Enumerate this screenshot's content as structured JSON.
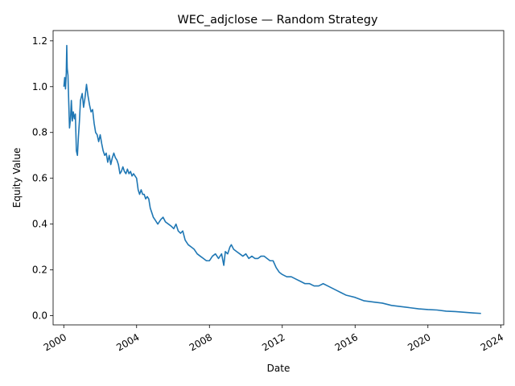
{
  "chart_data": {
    "type": "line",
    "title": "WEC_adjclose — Random Strategy",
    "xlabel": "Date",
    "ylabel": "Equity Value",
    "xlim": [
      "1999-06-01",
      "2024-03-01"
    ],
    "ylim": [
      -0.04,
      1.245
    ],
    "x_ticks": [
      "2000",
      "2004",
      "2008",
      "2012",
      "2016",
      "2020",
      "2024"
    ],
    "y_ticks": [
      "0.0",
      "0.2",
      "0.4",
      "0.6",
      "0.8",
      "1.0",
      "1.2"
    ],
    "grid": false,
    "legend": "none",
    "series": [
      {
        "color": "#1f77b4",
        "points": [
          [
            "2000-01-03",
            1.0
          ],
          [
            "2000-01-20",
            1.04
          ],
          [
            "2000-02-05",
            0.99
          ],
          [
            "2000-02-20",
            1.06
          ],
          [
            "2000-03-01",
            1.18
          ],
          [
            "2000-03-10",
            1.08
          ],
          [
            "2000-03-25",
            1.05
          ],
          [
            "2000-04-10",
            0.93
          ],
          [
            "2000-04-25",
            0.82
          ],
          [
            "2000-05-15",
            0.86
          ],
          [
            "2000-06-01",
            0.94
          ],
          [
            "2000-06-20",
            0.85
          ],
          [
            "2000-07-10",
            0.89
          ],
          [
            "2000-08-01",
            0.86
          ],
          [
            "2000-08-20",
            0.88
          ],
          [
            "2000-09-10",
            0.72
          ],
          [
            "2000-10-01",
            0.7
          ],
          [
            "2000-10-20",
            0.78
          ],
          [
            "2000-11-10",
            0.85
          ],
          [
            "2000-12-01",
            0.94
          ],
          [
            "2001-01-05",
            0.97
          ],
          [
            "2001-02-01",
            0.91
          ],
          [
            "2001-03-01",
            0.95
          ],
          [
            "2001-04-01",
            1.01
          ],
          [
            "2001-05-01",
            0.96
          ],
          [
            "2001-06-01",
            0.92
          ],
          [
            "2001-07-01",
            0.89
          ],
          [
            "2001-08-01",
            0.9
          ],
          [
            "2001-09-01",
            0.84
          ],
          [
            "2001-10-01",
            0.8
          ],
          [
            "2001-11-01",
            0.79
          ],
          [
            "2001-12-01",
            0.76
          ],
          [
            "2002-01-01",
            0.79
          ],
          [
            "2002-02-01",
            0.75
          ],
          [
            "2002-03-01",
            0.72
          ],
          [
            "2002-04-01",
            0.7
          ],
          [
            "2002-05-01",
            0.71
          ],
          [
            "2002-06-01",
            0.67
          ],
          [
            "2002-07-01",
            0.7
          ],
          [
            "2002-08-01",
            0.66
          ],
          [
            "2002-09-01",
            0.69
          ],
          [
            "2002-10-01",
            0.71
          ],
          [
            "2002-11-01",
            0.69
          ],
          [
            "2002-12-01",
            0.68
          ],
          [
            "2003-01-01",
            0.66
          ],
          [
            "2003-02-01",
            0.62
          ],
          [
            "2003-03-01",
            0.63
          ],
          [
            "2003-04-01",
            0.65
          ],
          [
            "2003-05-01",
            0.63
          ],
          [
            "2003-06-01",
            0.62
          ],
          [
            "2003-07-01",
            0.64
          ],
          [
            "2003-08-01",
            0.62
          ],
          [
            "2003-09-01",
            0.63
          ],
          [
            "2003-10-01",
            0.61
          ],
          [
            "2003-11-01",
            0.62
          ],
          [
            "2003-12-01",
            0.61
          ],
          [
            "2004-01-01",
            0.6
          ],
          [
            "2004-02-01",
            0.55
          ],
          [
            "2004-03-01",
            0.53
          ],
          [
            "2004-04-01",
            0.55
          ],
          [
            "2004-05-01",
            0.53
          ],
          [
            "2004-06-01",
            0.53
          ],
          [
            "2004-07-01",
            0.51
          ],
          [
            "2004-08-01",
            0.52
          ],
          [
            "2004-09-01",
            0.51
          ],
          [
            "2004-10-01",
            0.47
          ],
          [
            "2004-11-01",
            0.45
          ],
          [
            "2004-12-01",
            0.43
          ],
          [
            "2005-01-01",
            0.42
          ],
          [
            "2005-03-01",
            0.4
          ],
          [
            "2005-05-01",
            0.42
          ],
          [
            "2005-06-15",
            0.43
          ],
          [
            "2005-08-01",
            0.41
          ],
          [
            "2005-10-01",
            0.4
          ],
          [
            "2005-12-01",
            0.39
          ],
          [
            "2006-01-15",
            0.38
          ],
          [
            "2006-03-01",
            0.4
          ],
          [
            "2006-04-15",
            0.37
          ],
          [
            "2006-06-01",
            0.36
          ],
          [
            "2006-07-15",
            0.37
          ],
          [
            "2006-09-01",
            0.33
          ],
          [
            "2006-11-01",
            0.31
          ],
          [
            "2007-01-01",
            0.3
          ],
          [
            "2007-03-01",
            0.29
          ],
          [
            "2007-05-01",
            0.27
          ],
          [
            "2007-07-01",
            0.26
          ],
          [
            "2007-09-01",
            0.25
          ],
          [
            "2007-11-01",
            0.24
          ],
          [
            "2008-01-01",
            0.24
          ],
          [
            "2008-03-01",
            0.26
          ],
          [
            "2008-05-01",
            0.27
          ],
          [
            "2008-07-01",
            0.25
          ],
          [
            "2008-09-01",
            0.27
          ],
          [
            "2008-10-15",
            0.22
          ],
          [
            "2008-11-15",
            0.28
          ],
          [
            "2009-01-01",
            0.27
          ],
          [
            "2009-02-15",
            0.3
          ],
          [
            "2009-03-15",
            0.31
          ],
          [
            "2009-05-01",
            0.29
          ],
          [
            "2009-07-01",
            0.28
          ],
          [
            "2009-09-01",
            0.27
          ],
          [
            "2009-11-01",
            0.26
          ],
          [
            "2010-01-01",
            0.27
          ],
          [
            "2010-03-01",
            0.25
          ],
          [
            "2010-05-01",
            0.26
          ],
          [
            "2010-07-01",
            0.25
          ],
          [
            "2010-09-01",
            0.25
          ],
          [
            "2010-11-01",
            0.26
          ],
          [
            "2011-01-01",
            0.26
          ],
          [
            "2011-03-01",
            0.25
          ],
          [
            "2011-05-01",
            0.24
          ],
          [
            "2011-07-01",
            0.24
          ],
          [
            "2011-09-01",
            0.21
          ],
          [
            "2011-11-01",
            0.19
          ],
          [
            "2012-01-01",
            0.18
          ],
          [
            "2012-04-01",
            0.17
          ],
          [
            "2012-07-01",
            0.17
          ],
          [
            "2012-10-01",
            0.16
          ],
          [
            "2013-01-01",
            0.15
          ],
          [
            "2013-04-01",
            0.14
          ],
          [
            "2013-07-01",
            0.14
          ],
          [
            "2013-10-01",
            0.13
          ],
          [
            "2014-01-01",
            0.13
          ],
          [
            "2014-04-01",
            0.14
          ],
          [
            "2014-07-01",
            0.13
          ],
          [
            "2014-10-01",
            0.12
          ],
          [
            "2015-01-01",
            0.11
          ],
          [
            "2015-04-01",
            0.1
          ],
          [
            "2015-07-01",
            0.09
          ],
          [
            "2015-10-01",
            0.085
          ],
          [
            "2016-01-01",
            0.08
          ],
          [
            "2016-07-01",
            0.065
          ],
          [
            "2017-01-01",
            0.06
          ],
          [
            "2017-07-01",
            0.055
          ],
          [
            "2018-01-01",
            0.045
          ],
          [
            "2018-07-01",
            0.04
          ],
          [
            "2019-01-01",
            0.035
          ],
          [
            "2019-07-01",
            0.03
          ],
          [
            "2020-01-01",
            0.027
          ],
          [
            "2020-07-01",
            0.025
          ],
          [
            "2021-01-01",
            0.02
          ],
          [
            "2021-07-01",
            0.018
          ],
          [
            "2022-01-01",
            0.015
          ],
          [
            "2022-07-01",
            0.012
          ],
          [
            "2022-12-01",
            0.01
          ]
        ]
      }
    ]
  }
}
